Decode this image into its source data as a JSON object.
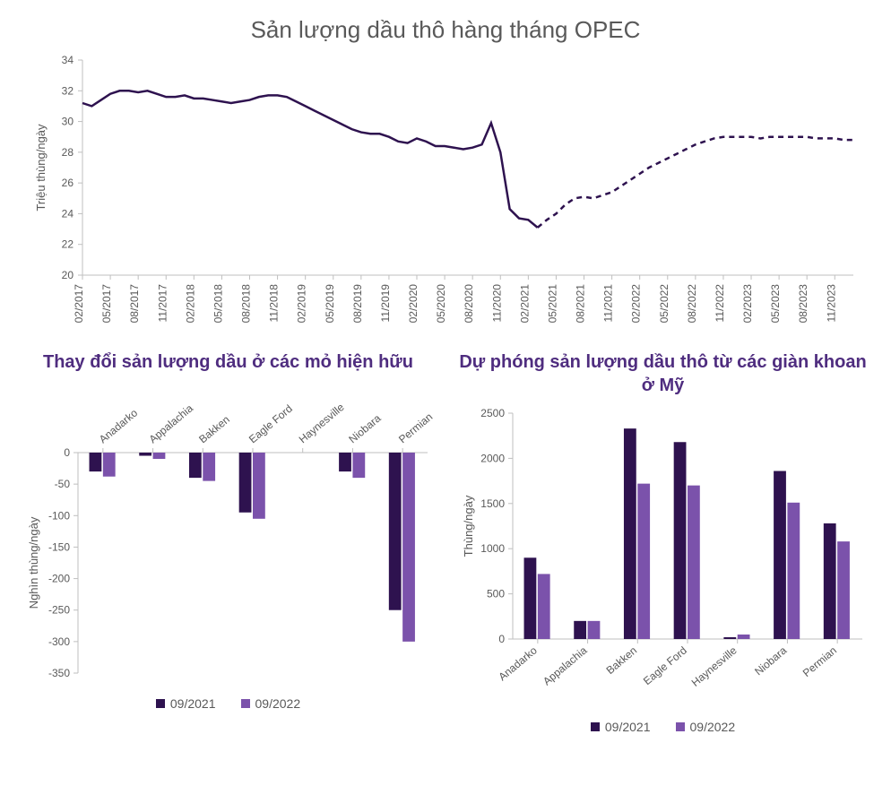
{
  "colors": {
    "dark": "#2e124f",
    "light": "#7b52ab",
    "axis": "#bfbfbf",
    "text": "#595959",
    "title_purple": "#4f2d7f",
    "bg": "#ffffff"
  },
  "top_chart": {
    "title": "Sản lượng dầu thô hàng tháng OPEC",
    "ylabel": "Triệu thùng/ngày",
    "ylim": [
      20,
      34
    ],
    "ytick_step": 2,
    "x_labels": [
      "02/2017",
      "05/2017",
      "08/2017",
      "11/2017",
      "02/2018",
      "05/2018",
      "08/2018",
      "11/2018",
      "02/2019",
      "05/2019",
      "08/2019",
      "11/2019",
      "02/2020",
      "05/2020",
      "08/2020",
      "11/2020",
      "02/2021",
      "05/2021",
      "08/2021",
      "11/2021",
      "02/2022",
      "05/2022",
      "08/2022",
      "11/2022",
      "02/2023",
      "05/2023",
      "08/2023",
      "11/2023"
    ],
    "solid_series": [
      31.2,
      31.0,
      31.4,
      31.8,
      32.0,
      32.0,
      31.9,
      32.0,
      31.8,
      31.6,
      31.6,
      31.7,
      31.5,
      31.5,
      31.4,
      31.3,
      31.2,
      31.3,
      31.4,
      31.6,
      31.7,
      31.7,
      31.6,
      31.3,
      31.0,
      30.7,
      30.4,
      30.1,
      29.8,
      29.5,
      29.3,
      29.2,
      29.2,
      29.0,
      28.7,
      28.6,
      28.9,
      28.7,
      28.4,
      28.4,
      28.3,
      28.2,
      28.3,
      28.5,
      29.9,
      28.0,
      24.3,
      23.7,
      23.6,
      23.1
    ],
    "dashed_series": [
      23.1,
      23.6,
      24.0,
      24.6,
      25.0,
      25.1,
      25.0,
      25.2,
      25.4,
      25.8,
      26.2,
      26.6,
      27.0,
      27.3,
      27.6,
      27.9,
      28.2,
      28.5,
      28.7,
      28.9,
      29.0,
      29.0,
      29.0,
      29.0,
      28.9,
      29.0,
      29.0,
      29.0,
      29.0,
      29.0,
      28.9,
      28.9,
      28.9,
      28.8,
      28.8
    ],
    "solid_start_index": 0,
    "dashed_start_index": 49,
    "label_fontsize": 12
  },
  "left_chart": {
    "title": "Thay đổi sản lượng dầu ở các mỏ hiện hữu",
    "ylabel": "Nghìn thùng/ngày",
    "categories": [
      "Anadarko",
      "Appalachia",
      "Bakken",
      "Eagle Ford",
      "Haynesville",
      "Niobara",
      "Permian"
    ],
    "series": [
      {
        "name": "09/2021",
        "color": "#2e124f",
        "values": [
          -30,
          -5,
          -40,
          -95,
          0,
          -30,
          -250
        ]
      },
      {
        "name": "09/2022",
        "color": "#7b52ab",
        "values": [
          -38,
          -10,
          -45,
          -105,
          0,
          -40,
          -300
        ]
      }
    ],
    "ylim": [
      -350,
      0
    ],
    "ytick_step": 50,
    "bar_group_width": 0.55
  },
  "right_chart": {
    "title": "Dự phóng sản lượng dầu thô từ các giàn khoan ở Mỹ",
    "ylabel": "Thùng/ngày",
    "categories": [
      "Anadarko",
      "Appalachia",
      "Bakken",
      "Eagle Ford",
      "Haynesville",
      "Niobara",
      "Permian"
    ],
    "series": [
      {
        "name": "09/2021",
        "color": "#2e124f",
        "values": [
          900,
          200,
          2330,
          2180,
          20,
          1860,
          1280
        ]
      },
      {
        "name": "09/2022",
        "color": "#7b52ab",
        "values": [
          720,
          200,
          1720,
          1700,
          50,
          1510,
          1080
        ]
      }
    ],
    "ylim": [
      0,
      2500
    ],
    "ytick_step": 500,
    "bar_group_width": 0.55
  },
  "legend_labels": [
    "09/2021",
    "09/2022"
  ]
}
